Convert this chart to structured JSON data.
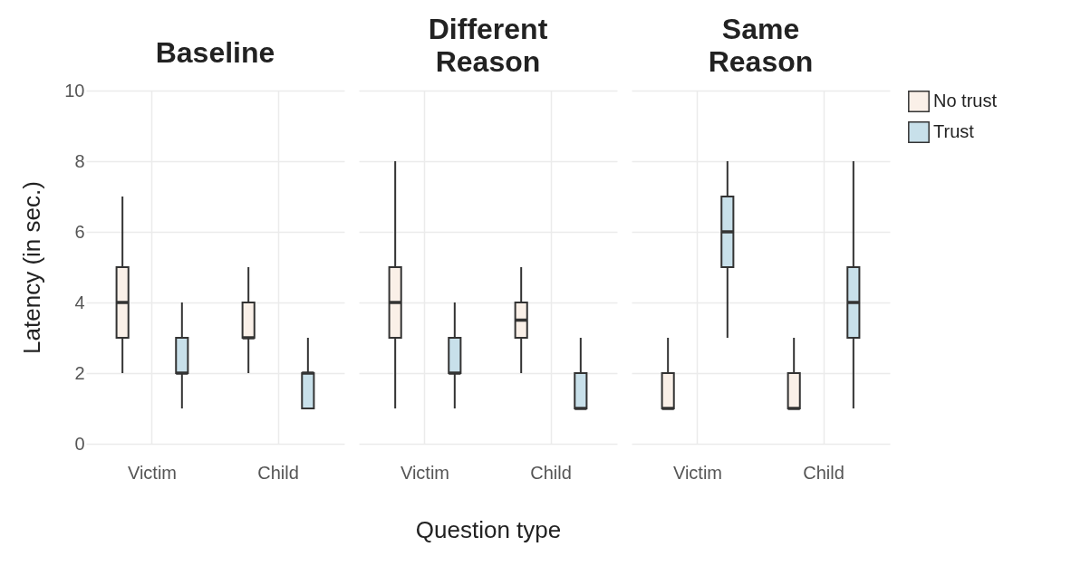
{
  "chart_data": [
    {
      "type": "box",
      "title": "Baseline",
      "ylabel": "Latency (in sec.)",
      "categories": [
        "Victim",
        "Child"
      ],
      "ylim": [
        0,
        10
      ],
      "yticks": [
        0,
        2,
        4,
        6,
        8,
        10
      ],
      "grid": true,
      "series": [
        {
          "color": "#faf0e8",
          "boxes": [
            {
              "low": 2,
              "q1": 3,
              "median": 4,
              "q3": 5,
              "high": 7
            },
            {
              "low": 2,
              "q1": 3,
              "median": 3,
              "q3": 4,
              "high": 5
            }
          ]
        },
        {
          "color": "#c8e0ea",
          "boxes": [
            {
              "low": 1,
              "q1": 2,
              "median": 2,
              "q3": 3,
              "high": 4
            },
            {
              "low": 1,
              "q1": 1,
              "median": 2,
              "q3": 2,
              "high": 3
            }
          ]
        }
      ]
    },
    {
      "type": "box",
      "title": "Different Reason",
      "xlabel": "Question type",
      "categories": [
        "Victim",
        "Child"
      ],
      "ylim": [
        0,
        10
      ],
      "yticks": [
        0,
        2,
        4,
        6,
        8,
        10
      ],
      "grid": true,
      "tick_labels": "x",
      "series": [
        {
          "color": "#faf0e8",
          "boxes": [
            {
              "low": 1,
              "q1": 3,
              "median": 4,
              "q3": 5,
              "high": 8
            },
            {
              "low": 2,
              "q1": 3,
              "median": 3.5,
              "q3": 4,
              "high": 5
            }
          ]
        },
        {
          "color": "#c8e0ea",
          "boxes": [
            {
              "low": 1,
              "q1": 2,
              "median": 2,
              "q3": 3,
              "high": 4
            },
            {
              "low": 1,
              "q1": 1,
              "median": 1,
              "q3": 2,
              "high": 3
            }
          ]
        }
      ]
    },
    {
      "type": "box",
      "title": "Same Reason",
      "categories": [
        "Victim",
        "Child"
      ],
      "ylim": [
        0,
        10
      ],
      "yticks": [
        0,
        2,
        4,
        6,
        8,
        10
      ],
      "grid": true,
      "legend": "right",
      "tick_labels": "x",
      "series": [
        {
          "name": "No trust",
          "color": "#faf0e8",
          "boxes": [
            {
              "low": 1,
              "q1": 1,
              "median": 1,
              "q3": 2,
              "high": 3
            },
            {
              "low": 1,
              "q1": 1,
              "median": 1,
              "q3": 2,
              "high": 3
            }
          ]
        },
        {
          "name": "Trust",
          "color": "#c8e0ea",
          "boxes": [
            {
              "low": 3,
              "q1": 5,
              "median": 6,
              "q3": 7,
              "high": 8
            },
            {
              "low": 1,
              "q1": 3,
              "median": 4,
              "q3": 5,
              "high": 8
            }
          ]
        }
      ]
    }
  ]
}
